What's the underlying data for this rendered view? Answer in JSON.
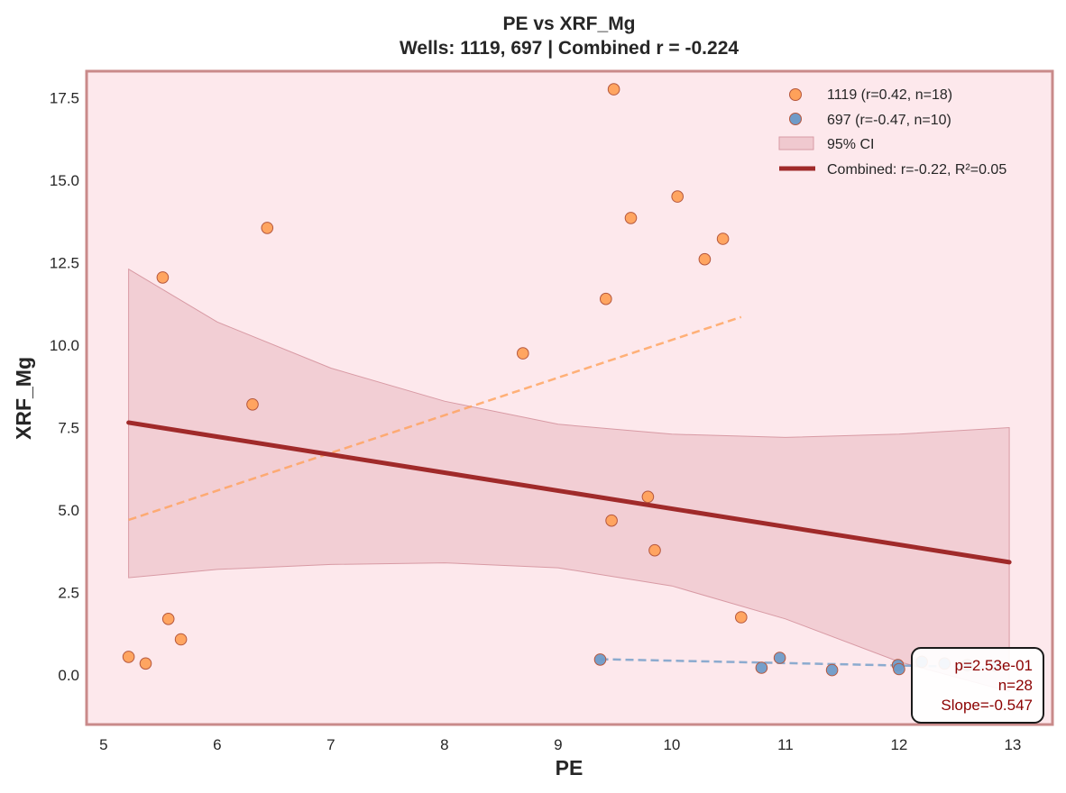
{
  "colors": {
    "plot_bg": "#fde8ec",
    "frame": "#c98a8a",
    "well_1119": "#ffa15a",
    "well_697": "#6f9bc8",
    "point_edge": "#b5573d",
    "combined_line": "#a02a2a",
    "ci_fill": "#e8b4bc",
    "stats_text": "#8b0000"
  },
  "chart_data": {
    "type": "scatter",
    "title": "PE vs XRF_Mg",
    "subtitle": "Wells: 1119, 697 | Combined r = -0.224",
    "xlabel": "PE",
    "ylabel": "XRF_Mg",
    "xlim": [
      4.85,
      13.35
    ],
    "ylim": [
      -1.5,
      18.3
    ],
    "xticks": [
      5,
      6,
      7,
      8,
      9,
      10,
      11,
      12,
      13
    ],
    "yticks": [
      0.0,
      2.5,
      5.0,
      7.5,
      10.0,
      12.5,
      15.0,
      17.5
    ],
    "xtick_labels": [
      "5",
      "6",
      "7",
      "8",
      "9",
      "10",
      "11",
      "12",
      "13"
    ],
    "ytick_labels": [
      "0.0",
      "2.5",
      "5.0",
      "7.5",
      "10.0",
      "12.5",
      "15.0",
      "17.5"
    ],
    "grid": false,
    "legend_position": "top-right",
    "series": [
      {
        "name": "1119 (r=0.42, n=18)",
        "color": "#ffa15a",
        "points": [
          [
            5.22,
            0.55
          ],
          [
            5.37,
            0.35
          ],
          [
            5.52,
            12.05
          ],
          [
            5.57,
            1.7
          ],
          [
            5.68,
            1.08
          ],
          [
            6.31,
            8.2
          ],
          [
            6.44,
            13.55
          ],
          [
            8.69,
            9.75
          ],
          [
            9.42,
            11.4
          ],
          [
            9.47,
            4.68
          ],
          [
            9.49,
            17.75
          ],
          [
            9.64,
            13.85
          ],
          [
            9.79,
            5.4
          ],
          [
            9.85,
            3.78
          ],
          [
            10.05,
            14.5
          ],
          [
            10.29,
            12.6
          ],
          [
            10.45,
            13.22
          ],
          [
            10.61,
            1.75
          ]
        ],
        "fit": {
          "x": [
            5.22,
            10.61
          ],
          "y": [
            4.7,
            10.85
          ]
        }
      },
      {
        "name": "697 (r=-0.47, n=10)",
        "color": "#6f9bc8",
        "points": [
          [
            9.37,
            0.47
          ],
          [
            10.79,
            0.22
          ],
          [
            10.95,
            0.52
          ],
          [
            11.41,
            0.15
          ],
          [
            11.99,
            0.3
          ],
          [
            12.0,
            0.18
          ],
          [
            12.2,
            0.4
          ],
          [
            12.4,
            0.35
          ],
          [
            12.6,
            0.3
          ],
          [
            12.85,
            0.28
          ]
        ],
        "fit": {
          "x": [
            9.37,
            12.95
          ],
          "y": [
            0.48,
            0.22
          ]
        }
      }
    ],
    "combined_fit": {
      "name": "Combined: r=-0.22, R²=0.05",
      "x": [
        5.22,
        12.97
      ],
      "y": [
        7.65,
        3.42
      ]
    },
    "ci_band": {
      "name": "95% CI",
      "x": [
        5.22,
        6.0,
        7.0,
        8.0,
        9.0,
        10.0,
        11.0,
        12.0,
        12.97
      ],
      "upper": [
        12.3,
        10.7,
        9.3,
        8.3,
        7.6,
        7.3,
        7.2,
        7.3,
        7.5
      ],
      "lower": [
        2.95,
        3.2,
        3.35,
        3.4,
        3.25,
        2.7,
        1.7,
        0.4,
        -0.5
      ]
    }
  },
  "stats_box": {
    "line1": "p=2.53e-01",
    "line2": "n=28",
    "line3": "Slope=-0.547"
  }
}
